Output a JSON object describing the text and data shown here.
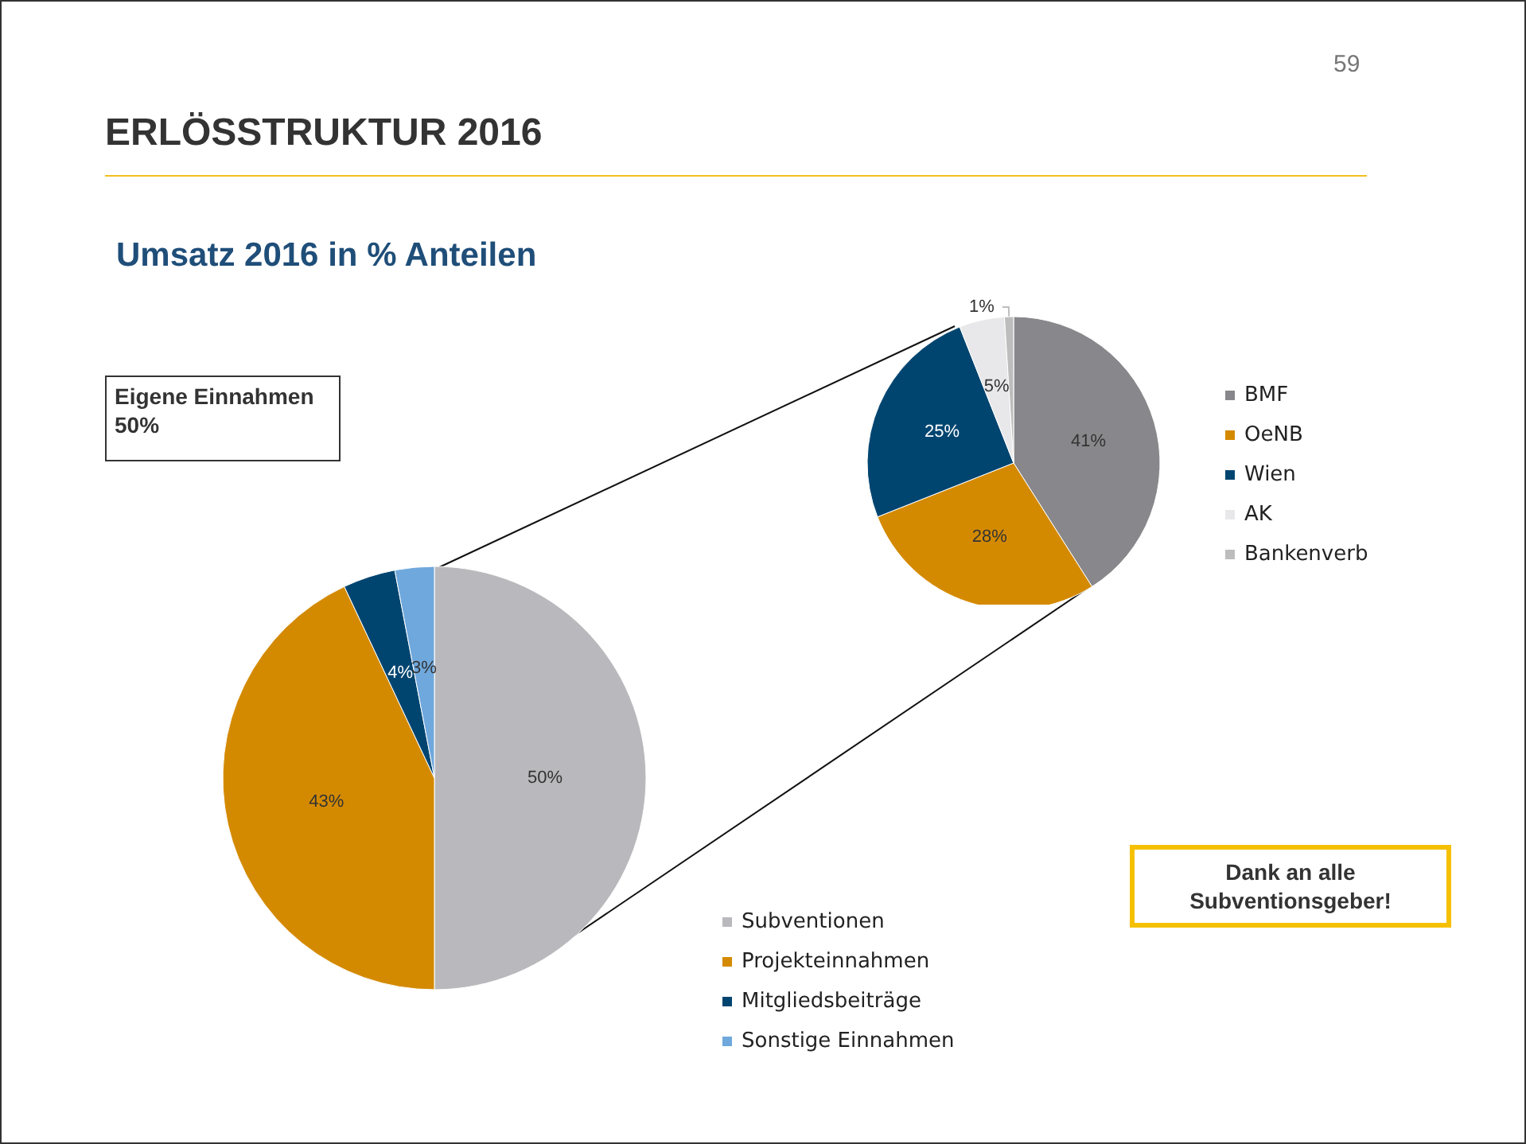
{
  "chart_data": [
    {
      "type": "pie",
      "title": "ERLÖSSTRUKTUR 2016",
      "subtitle": "Umsatz 2016 in % Anteilen",
      "annotations": [
        "59",
        "Eigene Einnahmen 50%",
        "Dank an alle Subventionsgeber!"
      ],
      "categories": [
        "Subventionen",
        "Projekteinnahmen",
        "Mitgliedsbeiträge",
        "Sonstige Einnahmen"
      ],
      "values": [
        50,
        43,
        4,
        3
      ],
      "colors": [
        "#b9b9bd",
        "#d48a00",
        "#004570",
        "#6fa8dc"
      ],
      "value_labels": [
        "50%",
        "43%",
        "4%",
        "3%"
      ],
      "legend": "bottom right"
    },
    {
      "type": "pie",
      "categories": [
        "BMF",
        "OeNB",
        "Wien",
        "AK",
        "Bankenverb"
      ],
      "values": [
        41,
        28,
        25,
        5,
        1
      ],
      "colors": [
        "#88888c",
        "#d48a00",
        "#004570",
        "#e8e8ea",
        "#bdbdbd"
      ],
      "value_labels": [
        "41%",
        "28%",
        "25%",
        "5%",
        "1%"
      ],
      "legend": "right"
    }
  ]
}
